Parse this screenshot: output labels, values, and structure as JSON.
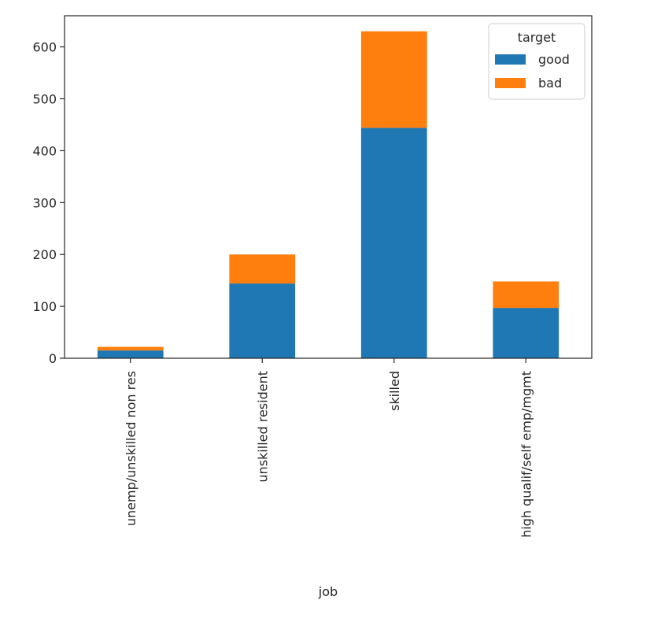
{
  "chart_data": {
    "type": "bar",
    "stacked": true,
    "categories": [
      "unemp/unskilled non res",
      "unskilled resident",
      "skilled",
      "high qualif/self emp/mgmt"
    ],
    "series": [
      {
        "name": "good",
        "values": [
          15,
          144,
          444,
          97
        ],
        "color": "#1f77b4"
      },
      {
        "name": "bad",
        "values": [
          7,
          56,
          186,
          51
        ],
        "color": "#ff7f0e"
      }
    ],
    "xlabel": "job",
    "ylabel": "",
    "ylim": [
      0,
      660
    ],
    "yticks": [
      0,
      100,
      200,
      300,
      400,
      500,
      600
    ],
    "legend": {
      "title": "target",
      "position": "top-right"
    },
    "grid": false
  }
}
